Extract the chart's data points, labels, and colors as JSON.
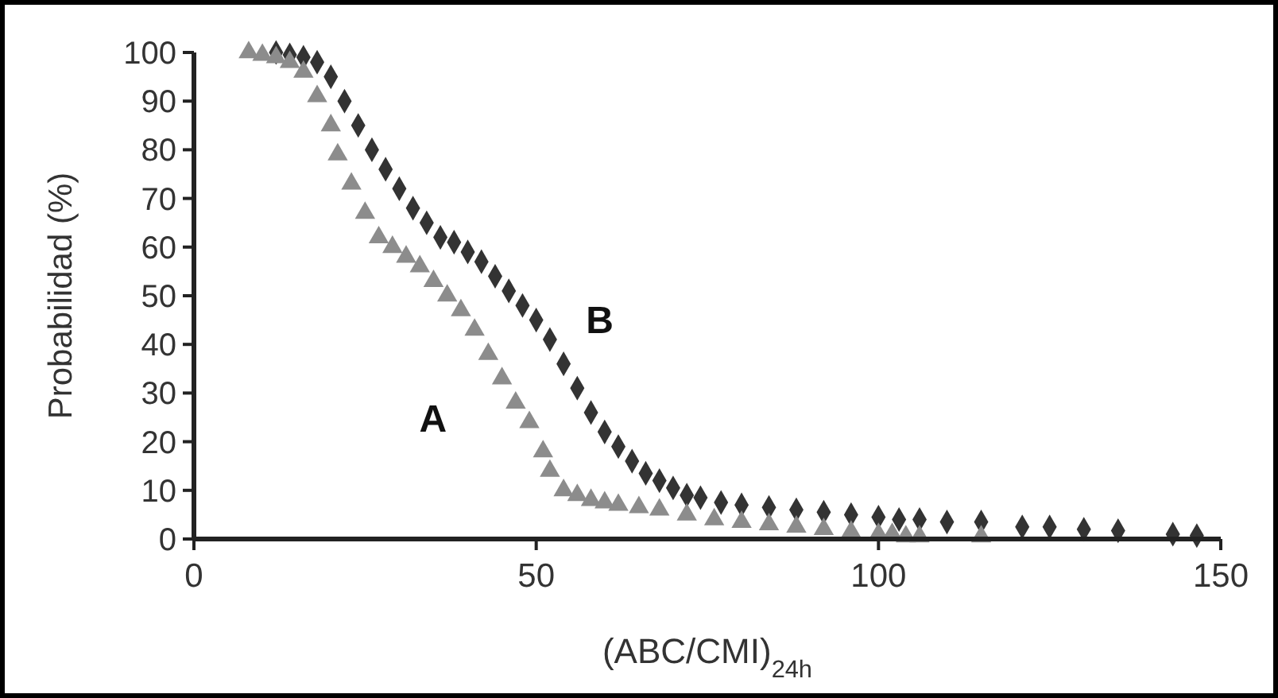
{
  "chart_data": {
    "type": "scatter",
    "xlabel": "(ABC/CMI)$_{24h}$",
    "ylabel": "Probabilidad (%)",
    "xlim": [
      0,
      150
    ],
    "ylim": [
      0,
      100
    ],
    "xticks": [
      0,
      50,
      100,
      150
    ],
    "yticks": [
      0,
      10,
      20,
      30,
      40,
      50,
      60,
      70,
      80,
      90,
      100
    ],
    "grid": false,
    "series": [
      {
        "name": "A",
        "color": "#8c8c8c",
        "marker": "triangle",
        "x": [
          8,
          10,
          12,
          14,
          16,
          18,
          20,
          21,
          23,
          25,
          27,
          29,
          31,
          33,
          35,
          37,
          39,
          41,
          43,
          45,
          47,
          49,
          51,
          52,
          54,
          56,
          58,
          60,
          62,
          65,
          68,
          72,
          76,
          80,
          84,
          88,
          92,
          96,
          100,
          102,
          104,
          106,
          115
        ],
        "values": [
          100,
          99.5,
          99,
          98,
          96,
          91,
          85,
          79,
          73,
          67,
          62,
          60,
          58,
          56,
          53,
          50,
          47,
          43,
          38,
          33,
          28,
          24,
          18,
          14,
          10,
          9,
          8,
          7.5,
          7,
          6.5,
          6,
          5,
          4,
          3.5,
          3,
          2.5,
          2,
          1.5,
          1,
          1,
          0.5,
          0.5,
          0.5
        ]
      },
      {
        "name": "B",
        "color": "#333333",
        "marker": "diamond",
        "x": [
          12,
          14,
          16,
          18,
          20,
          22,
          24,
          26,
          28,
          30,
          32,
          34,
          36,
          38,
          40,
          42,
          44,
          46,
          48,
          50,
          52,
          54,
          56,
          58,
          60,
          62,
          64,
          66,
          68,
          70,
          72,
          74,
          77,
          80,
          84,
          88,
          92,
          96,
          100,
          103,
          106,
          110,
          115,
          121,
          125,
          130,
          135,
          143,
          146.5
        ],
        "values": [
          100,
          99.5,
          99,
          98,
          95,
          90,
          85,
          80,
          76,
          72,
          68,
          65,
          62,
          61,
          59,
          57,
          54,
          51,
          48,
          45,
          41,
          36,
          31,
          26,
          22,
          19,
          16,
          13.5,
          12,
          10.5,
          9,
          8.5,
          7.5,
          7,
          6.5,
          6,
          5.5,
          5,
          4.5,
          4,
          4,
          3.5,
          3.5,
          2.5,
          2.5,
          2,
          1.7,
          1,
          0.7
        ]
      }
    ]
  }
}
